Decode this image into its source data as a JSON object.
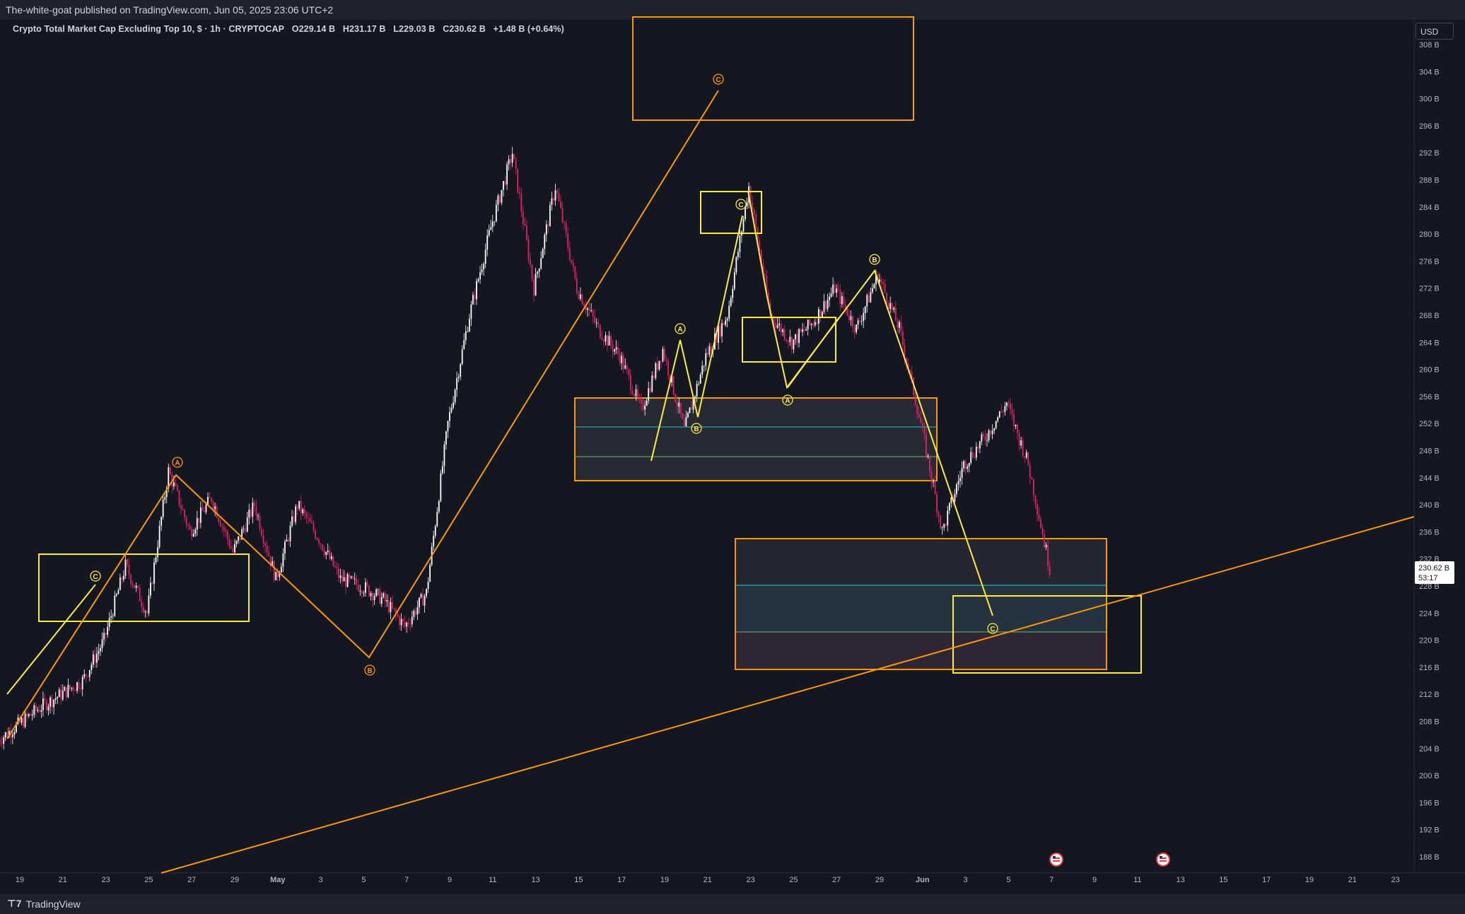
{
  "header": {
    "publisher": "The-white-goat published on TradingView.com, Jun 05, 2025 23:06 UTC+2"
  },
  "legend": {
    "title": "Crypto Total Market Cap Excluding Top 10, $ · 1h · CRYPTOCAP",
    "open": "O229.14 B",
    "high": "H231.17 B",
    "low": "L229.03 B",
    "close": "C230.62 B",
    "change": "+1.48 B (+0.64%)"
  },
  "currency_button": "USD",
  "price_tag": {
    "value": "230.62 B",
    "countdown": "53:17"
  },
  "footer": {
    "brand": "TradingView"
  },
  "colors": {
    "background": "#131722",
    "candle_up": "#ffffff",
    "candle_down": "#e91e63",
    "orange": "#ff9800",
    "yellow": "#ffeb3b",
    "teal": "#26c6da",
    "green": "#66bb6a"
  },
  "chart_data": {
    "type": "candlestick",
    "timeframe": "1h",
    "symbol": "CRYPTOCAP",
    "y_axis": {
      "unit": "B",
      "ticks": [
        "308 B",
        "304 B",
        "300 B",
        "296 B",
        "292 B",
        "288 B",
        "284 B",
        "280 B",
        "276 B",
        "272 B",
        "268 B",
        "264 B",
        "260 B",
        "256 B",
        "252 B",
        "248 B",
        "244 B",
        "240 B",
        "236 B",
        "232 B",
        "228 B",
        "224 B",
        "220 B",
        "216 B",
        "212 B",
        "208 B",
        "204 B",
        "200 B",
        "196 B",
        "192 B",
        "188 B"
      ]
    },
    "x_axis": {
      "ticks": [
        "19",
        "21",
        "23",
        "25",
        "27",
        "29",
        "May",
        "3",
        "5",
        "7",
        "9",
        "11",
        "13",
        "15",
        "17",
        "19",
        "21",
        "23",
        "25",
        "27",
        "29",
        "Jun",
        "3",
        "5",
        "7",
        "9",
        "11",
        "13",
        "15",
        "17",
        "19",
        "21",
        "23"
      ]
    },
    "price_path": [
      [
        "2025-04-18",
        205
      ],
      [
        "2025-04-20",
        210
      ],
      [
        "2025-04-22",
        214
      ],
      [
        "2025-04-23",
        220
      ],
      [
        "2025-04-24",
        231
      ],
      [
        "2025-04-25",
        224
      ],
      [
        "2025-04-26",
        245
      ],
      [
        "2025-04-27",
        236
      ],
      [
        "2025-04-28",
        241
      ],
      [
        "2025-04-29",
        233
      ],
      [
        "2025-04-30",
        240
      ],
      [
        "2025-05-01",
        229
      ],
      [
        "2025-05-02",
        240
      ],
      [
        "2025-05-03",
        235
      ],
      [
        "2025-05-04",
        229
      ],
      [
        "2025-05-05",
        228
      ],
      [
        "2025-05-06",
        226
      ],
      [
        "2025-05-07",
        222
      ],
      [
        "2025-05-08",
        227
      ],
      [
        "2025-05-09",
        252
      ],
      [
        "2025-05-10",
        268
      ],
      [
        "2025-05-11",
        281
      ],
      [
        "2025-05-12",
        292
      ],
      [
        "2025-05-13",
        272
      ],
      [
        "2025-05-14",
        287
      ],
      [
        "2025-05-15",
        272
      ],
      [
        "2025-05-16",
        266
      ],
      [
        "2025-05-17",
        262
      ],
      [
        "2025-05-18",
        254
      ],
      [
        "2025-05-19",
        263
      ],
      [
        "2025-05-20",
        251
      ],
      [
        "2025-05-21",
        262
      ],
      [
        "2025-05-22",
        268
      ],
      [
        "2025-05-23",
        287
      ],
      [
        "2025-05-24",
        268
      ],
      [
        "2025-05-25",
        264
      ],
      [
        "2025-05-26",
        267
      ],
      [
        "2025-05-27",
        272
      ],
      [
        "2025-05-28",
        266
      ],
      [
        "2025-05-29",
        274
      ],
      [
        "2025-05-30",
        266
      ],
      [
        "2025-05-31",
        252
      ],
      [
        "2025-06-01",
        236
      ],
      [
        "2025-06-02",
        246
      ],
      [
        "2025-06-03",
        250
      ],
      [
        "2025-06-04",
        255
      ],
      [
        "2025-06-05",
        246
      ],
      [
        "2025-06-06",
        230.62
      ]
    ],
    "last": {
      "open": 229.14,
      "high": 231.17,
      "low": 229.03,
      "close": 230.62
    },
    "wave_labels": {
      "orange": [
        "C",
        "A",
        "B"
      ],
      "yellow": [
        "C",
        "C",
        "A",
        "B",
        "A",
        "B",
        "C"
      ]
    },
    "events": [
      "us-flag-icon",
      "us-flag-icon"
    ]
  }
}
